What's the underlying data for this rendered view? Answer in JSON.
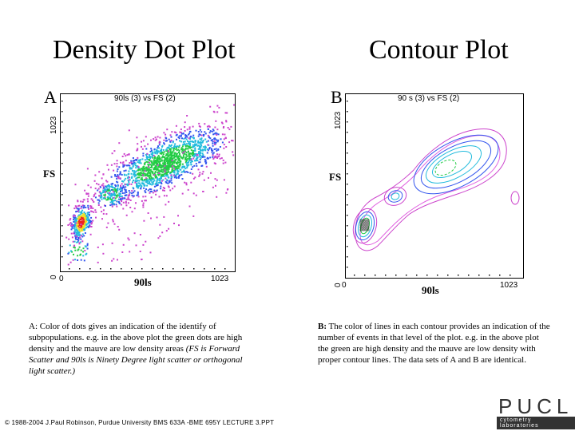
{
  "slide": {
    "title_left": "Density Dot Plot",
    "title_right": "Contour Plot"
  },
  "plot_a": {
    "letter": "A",
    "subtitle": "90ls (3) vs FS (2)",
    "y_max": "1023",
    "y_min": "0",
    "y_label": "FS",
    "x_min": "0",
    "x_max": "1023",
    "x_label": "90ls"
  },
  "plot_b": {
    "letter": "B",
    "subtitle": "90 s (3) vs FS (2)",
    "y_max": "1023",
    "y_min": "0",
    "y_label": "FS",
    "x_min": "0",
    "x_max": "1023",
    "x_label": "90ls"
  },
  "caption_a": {
    "label": "A",
    "text": ": Color of dots gives an  indication of the identify of subpopulations. e.g.  in the above plot  the green dots are high density and the mauve are low density areas ",
    "italic": "(FS is Forward Scatter and 90ls is Ninety Degree light scatter or orthogonal light scatter.)"
  },
  "caption_b": {
    "label": "B:",
    "text": " The color of lines in each contour provides an indication of the number of events in that level of the plot. e.g. in the above plot the green are high density and the mauve are low density with proper contour lines. The data sets of A and B are identical."
  },
  "footer": {
    "text": "© 1988-2004 J.Paul Robinson, Purdue University  BMS 633A -BME 695Y  LECTURE 3.PPT"
  },
  "logo": {
    "name": "PUCL",
    "sub": "cytometry laboratories"
  },
  "colors": {
    "mauve": "#cc44cc",
    "magenta": "#e060e0",
    "blue": "#3355ee",
    "cyan": "#22bbdd",
    "green": "#22cc44",
    "red": "#ee2222",
    "yellow": "#eedd22"
  }
}
